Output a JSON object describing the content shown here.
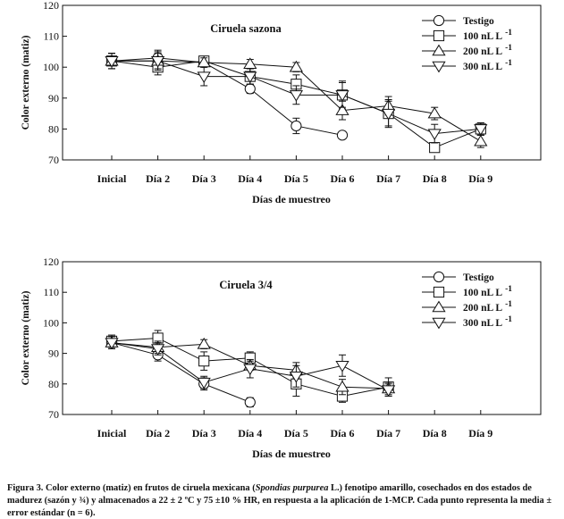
{
  "chart_data": [
    {
      "type": "line",
      "title": "Ciruela sazona",
      "xlabel": "Días de muestreo",
      "ylabel": "Color externo (matiz)",
      "ylim": [
        70,
        120
      ],
      "yticks": [
        70,
        80,
        90,
        100,
        110,
        120
      ],
      "grid": false,
      "legend_position": "top-right",
      "categories": [
        "Inicial",
        "Día 2",
        "Día 3",
        "Día 4",
        "Día 5",
        "Día 6",
        "Día 7",
        "Día 8",
        "Día 9"
      ],
      "series": [
        {
          "name": "Testigo",
          "marker": "circle",
          "values": [
            102,
            103,
            101.5,
            93,
            81,
            78,
            null,
            null,
            null
          ],
          "errors": [
            2.5,
            2.5,
            1.5,
            1.5,
            2.5,
            1.2,
            null,
            null,
            null
          ]
        },
        {
          "name": "100 nL L",
          "superscript": "-1",
          "marker": "square",
          "values": [
            102,
            100,
            102,
            97,
            94.5,
            91,
            85,
            74,
            80
          ],
          "errors": [
            2.5,
            2.5,
            1.5,
            2.5,
            3,
            4.5,
            4.5,
            1.5,
            2
          ]
        },
        {
          "name": "200 nL L",
          "superscript": "-1",
          "marker": "triangle-up",
          "values": [
            102,
            102,
            101.5,
            101,
            100,
            86,
            87.5,
            85,
            76
          ],
          "errors": [
            2.5,
            2.5,
            1.5,
            1.5,
            1.5,
            3,
            3,
            2,
            2
          ]
        },
        {
          "name": "300 nL L",
          "superscript": "-1",
          "marker": "triangle-down",
          "values": [
            102,
            102,
            97,
            97,
            91,
            91,
            85,
            78.5,
            80
          ],
          "errors": [
            2.5,
            3,
            3,
            2.5,
            3,
            4,
            4,
            3,
            2
          ]
        }
      ]
    },
    {
      "type": "line",
      "title": "Ciruela 3/4",
      "xlabel": "Días de muestreo",
      "ylabel": "Color externo (matiz)",
      "ylim": [
        70,
        120
      ],
      "yticks": [
        70,
        80,
        90,
        100,
        110,
        120
      ],
      "grid": false,
      "legend_position": "top-right",
      "categories": [
        "Inicial",
        "Día 2",
        "Día 3",
        "Día 4",
        "Día 5",
        "Día 6",
        "Día 7",
        "Día 8",
        "Día 9"
      ],
      "series": [
        {
          "name": "Testigo",
          "marker": "circle",
          "values": [
            93.5,
            89.5,
            80,
            74,
            null,
            null,
            null,
            null,
            null
          ],
          "errors": [
            2,
            2,
            2,
            1.5,
            null,
            null,
            null,
            null,
            null
          ]
        },
        {
          "name": "100 nL L",
          "superscript": "-1",
          "marker": "square",
          "values": [
            94,
            95,
            87.5,
            88.5,
            80,
            76,
            79,
            null,
            null
          ],
          "errors": [
            2,
            2.5,
            3,
            2,
            4,
            2,
            3,
            null,
            null
          ]
        },
        {
          "name": "200 nL L",
          "superscript": "-1",
          "marker": "triangle-up",
          "values": [
            93.5,
            92,
            93,
            86,
            84.5,
            79,
            78.5,
            null,
            null
          ],
          "errors": [
            2,
            2,
            1.5,
            1.5,
            2.5,
            2.5,
            2,
            null,
            null
          ]
        },
        {
          "name": "300 nL L",
          "superscript": "-1",
          "marker": "triangle-down",
          "values": [
            93.5,
            91.5,
            80.5,
            85,
            82.5,
            86,
            78,
            null,
            null
          ],
          "errors": [
            2,
            2,
            2,
            3,
            3.5,
            3.5,
            2,
            null,
            null
          ]
        }
      ]
    }
  ],
  "caption": {
    "part1": "Figura 3. Color externo (matiz) en frutos de ciruela mexicana (",
    "species": "Spondias purpurea",
    "part2": " L.) fenotipo amarillo, cosechados en dos estados de madurez (sazón y ¾) y almacenados a 22 ± 2 ºC y 75 ±10 % HR, en respuesta a la aplicación de 1-MCP. Cada punto representa la media ± error estándar (n = 6)."
  }
}
